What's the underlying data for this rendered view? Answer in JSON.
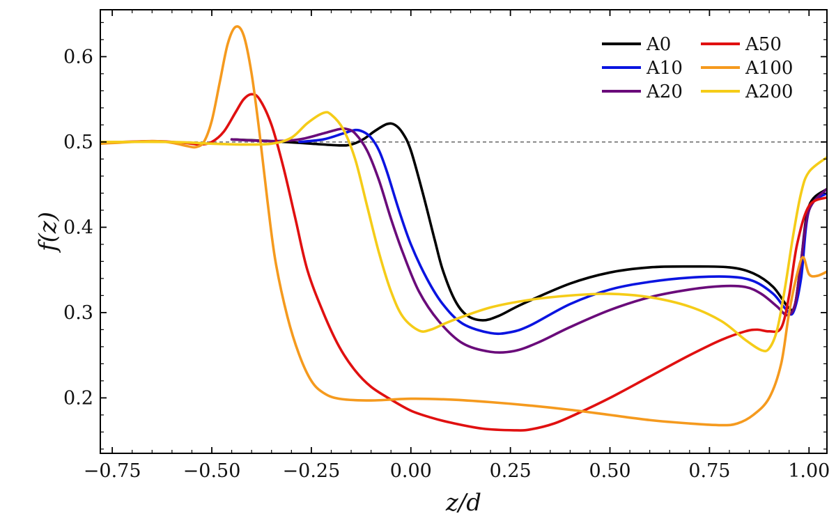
{
  "chart_data": {
    "type": "line",
    "title": "",
    "xlabel": "z/d",
    "ylabel": "f(z)",
    "xlim": [
      -0.78,
      1.045
    ],
    "ylim": [
      0.135,
      0.655
    ],
    "xticks": [
      -0.75,
      -0.5,
      -0.25,
      0.0,
      0.25,
      0.5,
      0.75,
      1.0
    ],
    "xtick_labels": [
      "−0.75",
      "−0.50",
      "−0.25",
      "0.00",
      "0.25",
      "0.50",
      "0.75",
      "1.00"
    ],
    "yticks": [
      0.2,
      0.3,
      0.4,
      0.5,
      0.6
    ],
    "ytick_labels": [
      "0.2",
      "0.3",
      "0.4",
      "0.5",
      "0.6"
    ],
    "reference_line": {
      "y": 0.5,
      "style": "dashed",
      "color": "#888888"
    },
    "grid": false,
    "legend": {
      "placement": "top-right",
      "columns": 2
    },
    "series": [
      {
        "name": "A0",
        "color": "#000000",
        "points": [
          [
            -0.45,
            0.503
          ],
          [
            -0.35,
            0.501
          ],
          [
            -0.25,
            0.498
          ],
          [
            -0.18,
            0.496
          ],
          [
            -0.15,
            0.497
          ],
          [
            -0.12,
            0.503
          ],
          [
            -0.09,
            0.513
          ],
          [
            -0.06,
            0.521
          ],
          [
            -0.04,
            0.52
          ],
          [
            -0.02,
            0.51
          ],
          [
            0.0,
            0.49
          ],
          [
            0.03,
            0.44
          ],
          [
            0.06,
            0.385
          ],
          [
            0.08,
            0.35
          ],
          [
            0.11,
            0.315
          ],
          [
            0.14,
            0.297
          ],
          [
            0.18,
            0.291
          ],
          [
            0.22,
            0.296
          ],
          [
            0.28,
            0.31
          ],
          [
            0.4,
            0.334
          ],
          [
            0.5,
            0.347
          ],
          [
            0.6,
            0.353
          ],
          [
            0.7,
            0.354
          ],
          [
            0.8,
            0.353
          ],
          [
            0.86,
            0.346
          ],
          [
            0.91,
            0.33
          ],
          [
            0.95,
            0.305
          ],
          [
            0.965,
            0.31
          ],
          [
            0.98,
            0.36
          ],
          [
            1.0,
            0.425
          ],
          [
            1.045,
            0.445
          ]
        ]
      },
      {
        "name": "A10",
        "color": "#0a14e0",
        "points": [
          [
            -0.28,
            0.5
          ],
          [
            -0.22,
            0.503
          ],
          [
            -0.17,
            0.51
          ],
          [
            -0.14,
            0.514
          ],
          [
            -0.12,
            0.512
          ],
          [
            -0.1,
            0.505
          ],
          [
            -0.08,
            0.49
          ],
          [
            -0.06,
            0.465
          ],
          [
            -0.03,
            0.42
          ],
          [
            0.0,
            0.38
          ],
          [
            0.04,
            0.34
          ],
          [
            0.08,
            0.31
          ],
          [
            0.13,
            0.287
          ],
          [
            0.2,
            0.276
          ],
          [
            0.25,
            0.277
          ],
          [
            0.3,
            0.285
          ],
          [
            0.4,
            0.31
          ],
          [
            0.5,
            0.327
          ],
          [
            0.6,
            0.336
          ],
          [
            0.7,
            0.341
          ],
          [
            0.8,
            0.342
          ],
          [
            0.86,
            0.337
          ],
          [
            0.91,
            0.322
          ],
          [
            0.94,
            0.305
          ],
          [
            0.96,
            0.3
          ],
          [
            0.98,
            0.34
          ],
          [
            1.0,
            0.42
          ],
          [
            1.045,
            0.44
          ]
        ]
      },
      {
        "name": "A20",
        "color": "#6a0b7a",
        "points": [
          [
            -0.45,
            0.503
          ],
          [
            -0.35,
            0.501
          ],
          [
            -0.28,
            0.503
          ],
          [
            -0.22,
            0.51
          ],
          [
            -0.18,
            0.515
          ],
          [
            -0.16,
            0.515
          ],
          [
            -0.14,
            0.51
          ],
          [
            -0.11,
            0.49
          ],
          [
            -0.08,
            0.455
          ],
          [
            -0.05,
            0.41
          ],
          [
            -0.02,
            0.37
          ],
          [
            0.02,
            0.325
          ],
          [
            0.07,
            0.29
          ],
          [
            0.13,
            0.264
          ],
          [
            0.2,
            0.254
          ],
          [
            0.26,
            0.255
          ],
          [
            0.32,
            0.265
          ],
          [
            0.4,
            0.283
          ],
          [
            0.5,
            0.303
          ],
          [
            0.6,
            0.318
          ],
          [
            0.7,
            0.327
          ],
          [
            0.78,
            0.331
          ],
          [
            0.84,
            0.33
          ],
          [
            0.88,
            0.322
          ],
          [
            0.92,
            0.307
          ],
          [
            0.945,
            0.297
          ],
          [
            0.965,
            0.31
          ],
          [
            0.98,
            0.36
          ],
          [
            1.0,
            0.42
          ],
          [
            1.045,
            0.445
          ]
        ]
      },
      {
        "name": "A50",
        "color": "#e01010",
        "points": [
          [
            -0.78,
            0.499
          ],
          [
            -0.65,
            0.501
          ],
          [
            -0.57,
            0.499
          ],
          [
            -0.53,
            0.497
          ],
          [
            -0.5,
            0.5
          ],
          [
            -0.47,
            0.512
          ],
          [
            -0.44,
            0.535
          ],
          [
            -0.42,
            0.55
          ],
          [
            -0.4,
            0.556
          ],
          [
            -0.38,
            0.55
          ],
          [
            -0.35,
            0.52
          ],
          [
            -0.32,
            0.47
          ],
          [
            -0.29,
            0.41
          ],
          [
            -0.26,
            0.35
          ],
          [
            -0.22,
            0.3
          ],
          [
            -0.18,
            0.26
          ],
          [
            -0.14,
            0.232
          ],
          [
            -0.1,
            0.213
          ],
          [
            -0.05,
            0.198
          ],
          [
            0.0,
            0.185
          ],
          [
            0.05,
            0.177
          ],
          [
            0.1,
            0.171
          ],
          [
            0.18,
            0.164
          ],
          [
            0.26,
            0.162
          ],
          [
            0.3,
            0.163
          ],
          [
            0.36,
            0.17
          ],
          [
            0.42,
            0.182
          ],
          [
            0.5,
            0.2
          ],
          [
            0.6,
            0.225
          ],
          [
            0.7,
            0.25
          ],
          [
            0.78,
            0.268
          ],
          [
            0.84,
            0.278
          ],
          [
            0.87,
            0.28
          ],
          [
            0.9,
            0.278
          ],
          [
            0.93,
            0.282
          ],
          [
            0.95,
            0.32
          ],
          [
            0.97,
            0.38
          ],
          [
            1.0,
            0.425
          ],
          [
            1.045,
            0.435
          ]
        ]
      },
      {
        "name": "A100",
        "color": "#f59a1e",
        "points": [
          [
            -0.78,
            0.498
          ],
          [
            -0.65,
            0.501
          ],
          [
            -0.6,
            0.499
          ],
          [
            -0.56,
            0.495
          ],
          [
            -0.54,
            0.494
          ],
          [
            -0.52,
            0.5
          ],
          [
            -0.5,
            0.525
          ],
          [
            -0.48,
            0.57
          ],
          [
            -0.46,
            0.615
          ],
          [
            -0.44,
            0.635
          ],
          [
            -0.42,
            0.625
          ],
          [
            -0.4,
            0.58
          ],
          [
            -0.38,
            0.51
          ],
          [
            -0.36,
            0.43
          ],
          [
            -0.34,
            0.36
          ],
          [
            -0.31,
            0.295
          ],
          [
            -0.28,
            0.25
          ],
          [
            -0.25,
            0.22
          ],
          [
            -0.22,
            0.206
          ],
          [
            -0.18,
            0.199
          ],
          [
            -0.1,
            0.197
          ],
          [
            0.0,
            0.199
          ],
          [
            0.1,
            0.198
          ],
          [
            0.2,
            0.195
          ],
          [
            0.3,
            0.191
          ],
          [
            0.4,
            0.186
          ],
          [
            0.5,
            0.18
          ],
          [
            0.6,
            0.174
          ],
          [
            0.7,
            0.17
          ],
          [
            0.78,
            0.168
          ],
          [
            0.82,
            0.17
          ],
          [
            0.86,
            0.18
          ],
          [
            0.9,
            0.2
          ],
          [
            0.93,
            0.24
          ],
          [
            0.95,
            0.3
          ],
          [
            0.97,
            0.345
          ],
          [
            0.985,
            0.365
          ],
          [
            1.0,
            0.345
          ],
          [
            1.02,
            0.343
          ],
          [
            1.045,
            0.348
          ]
        ]
      },
      {
        "name": "A200",
        "color": "#f5cc18",
        "points": [
          [
            -0.78,
            0.5
          ],
          [
            -0.6,
            0.5
          ],
          [
            -0.5,
            0.498
          ],
          [
            -0.42,
            0.497
          ],
          [
            -0.35,
            0.498
          ],
          [
            -0.3,
            0.505
          ],
          [
            -0.26,
            0.522
          ],
          [
            -0.22,
            0.534
          ],
          [
            -0.2,
            0.532
          ],
          [
            -0.17,
            0.515
          ],
          [
            -0.14,
            0.48
          ],
          [
            -0.11,
            0.425
          ],
          [
            -0.08,
            0.37
          ],
          [
            -0.05,
            0.325
          ],
          [
            -0.02,
            0.295
          ],
          [
            0.02,
            0.279
          ],
          [
            0.05,
            0.28
          ],
          [
            0.1,
            0.29
          ],
          [
            0.2,
            0.306
          ],
          [
            0.3,
            0.315
          ],
          [
            0.4,
            0.32
          ],
          [
            0.5,
            0.322
          ],
          [
            0.6,
            0.318
          ],
          [
            0.7,
            0.307
          ],
          [
            0.78,
            0.29
          ],
          [
            0.84,
            0.268
          ],
          [
            0.88,
            0.256
          ],
          [
            0.9,
            0.258
          ],
          [
            0.92,
            0.28
          ],
          [
            0.94,
            0.33
          ],
          [
            0.96,
            0.39
          ],
          [
            0.98,
            0.44
          ],
          [
            1.0,
            0.465
          ],
          [
            1.045,
            0.482
          ]
        ]
      }
    ]
  }
}
